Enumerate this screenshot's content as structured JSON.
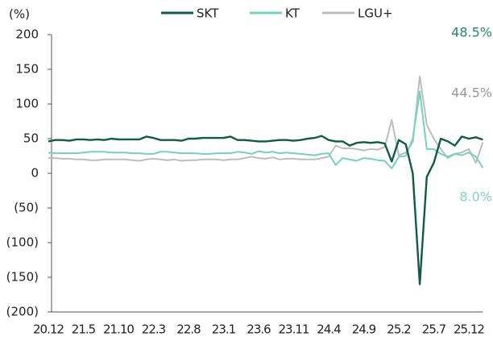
{
  "chart_data": {
    "type": "line",
    "y_label": "(%)",
    "categories": [
      "20.12",
      null,
      null,
      null,
      null,
      "21.5",
      null,
      null,
      null,
      null,
      "21.10",
      null,
      null,
      null,
      null,
      "22.3",
      null,
      null,
      null,
      null,
      "22.8",
      null,
      null,
      null,
      null,
      "23.1",
      null,
      null,
      null,
      null,
      "23.6",
      null,
      null,
      null,
      null,
      "23.11",
      null,
      null,
      null,
      null,
      "24.4",
      null,
      null,
      null,
      null,
      "24.9",
      null,
      null,
      null,
      null,
      "25.2",
      null,
      null,
      null,
      null,
      "25.7",
      null,
      null,
      null,
      null,
      "25.12",
      null,
      null
    ],
    "series": [
      {
        "name": "SKT",
        "color": "#0e5c47",
        "values": [
          46,
          48,
          48,
          47,
          49,
          49,
          48,
          49,
          48,
          50,
          49,
          49,
          49,
          49,
          53,
          51,
          48,
          48,
          48,
          47,
          50,
          50,
          51,
          51,
          51,
          51,
          53,
          48,
          48,
          47,
          46,
          46,
          47,
          48,
          48,
          47,
          48,
          50,
          51,
          54,
          48,
          46,
          46,
          40,
          44,
          45,
          44,
          45,
          43,
          17,
          48,
          42,
          0,
          -160,
          -5,
          15,
          50,
          46,
          40,
          53,
          50,
          52,
          48.5
        ]
      },
      {
        "name": "KT",
        "color": "#6fd3bd",
        "values": [
          30,
          29,
          29,
          29,
          29,
          30,
          31,
          31,
          31,
          30,
          30,
          30,
          29,
          29,
          28,
          28,
          31,
          31,
          30,
          29,
          29,
          29,
          28,
          28,
          29,
          29,
          29,
          31,
          30,
          28,
          32,
          30,
          31,
          29,
          30,
          29,
          28,
          27,
          26,
          28,
          29,
          12,
          22,
          20,
          18,
          22,
          21,
          19,
          18,
          7,
          24,
          25,
          50,
          118,
          35,
          35,
          28,
          24,
          28,
          26,
          30,
          24,
          8.0
        ]
      },
      {
        "name": "LGU+",
        "color": "#bdbdbd",
        "values": [
          22,
          22,
          21,
          21,
          20,
          20,
          19,
          19,
          20,
          20,
          20,
          20,
          19,
          18,
          20,
          21,
          20,
          19,
          20,
          18,
          19,
          19,
          20,
          20,
          20,
          19,
          20,
          20,
          22,
          24,
          22,
          21,
          23,
          20,
          21,
          21,
          20,
          20,
          20,
          22,
          24,
          40,
          36,
          36,
          35,
          33,
          35,
          34,
          38,
          77,
          26,
          30,
          45,
          140,
          70,
          50,
          35,
          22,
          28,
          30,
          35,
          15,
          44.5
        ]
      }
    ],
    "annotations": [
      {
        "text": "48.5%",
        "color": "#1f8a6b"
      },
      {
        "text": "44.5%",
        "color": "#9a9a9a"
      },
      {
        "text": "8.0%",
        "color": "#7fd6c2"
      }
    ],
    "ylim": [
      -200,
      200
    ],
    "yticks": [
      {
        "value": -200,
        "label": "(200)"
      },
      {
        "value": -150,
        "label": "(150)"
      },
      {
        "value": -100,
        "label": "(100)"
      },
      {
        "value": -50,
        "label": "(50)"
      },
      0,
      50,
      100,
      150,
      200
    ],
    "legend": "top"
  }
}
